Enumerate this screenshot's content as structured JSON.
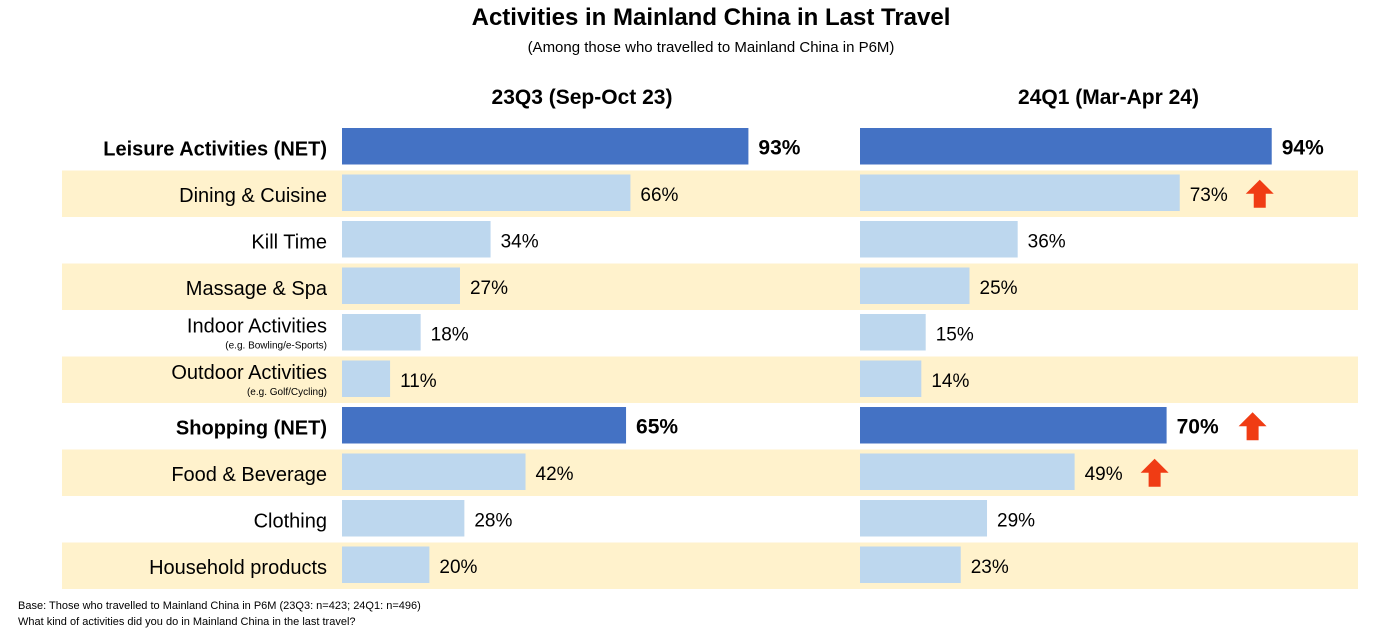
{
  "title": "Activities in Mainland China in Last Travel",
  "subtitle": "(Among those who travelled to Mainland China in P6M)",
  "colors": {
    "net_bar": "#4472C4",
    "sub_bar": "#BDD7EE",
    "band": "#FFF2CC",
    "arrow": "#F03C14"
  },
  "chart_data": {
    "type": "bar",
    "orientation": "horizontal",
    "xlim": [
      0,
      100
    ],
    "unit": "%",
    "categories": [
      {
        "label": "Leisure Activities (NET)",
        "note": "",
        "net": true
      },
      {
        "label": "Dining & Cuisine",
        "note": "",
        "net": false
      },
      {
        "label": "Kill Time",
        "note": "",
        "net": false
      },
      {
        "label": "Massage & Spa",
        "note": "",
        "net": false
      },
      {
        "label": "Indoor Activities",
        "note": "(e.g. Bowling/e-Sports)",
        "net": false
      },
      {
        "label": "Outdoor Activities",
        "note": "(e.g. Golf/Cycling)",
        "net": false
      },
      {
        "label": "Shopping (NET)",
        "note": "",
        "net": true
      },
      {
        "label": "Food & Beverage",
        "note": "",
        "net": false
      },
      {
        "label": "Clothing",
        "note": "",
        "net": false
      },
      {
        "label": "Household products",
        "note": "",
        "net": false
      }
    ],
    "series": [
      {
        "name": "23Q3 (Sep-Oct 23)",
        "values": [
          93,
          66,
          34,
          27,
          18,
          11,
          65,
          42,
          28,
          20
        ],
        "labels": [
          "93%",
          "66%",
          "34%",
          "27%",
          "18%",
          "11%",
          "65%",
          "42%",
          "28%",
          "20%"
        ],
        "up": [
          false,
          false,
          false,
          false,
          false,
          false,
          false,
          false,
          false,
          false
        ]
      },
      {
        "name": "24Q1 (Mar-Apr 24)",
        "values": [
          94,
          73,
          36,
          25,
          15,
          14,
          70,
          49,
          29,
          23
        ],
        "labels": [
          "94%",
          "73%",
          "36%",
          "25%",
          "15%",
          "14%",
          "70%",
          "49%",
          "29%",
          "23%"
        ],
        "up": [
          false,
          true,
          false,
          false,
          false,
          false,
          true,
          true,
          false,
          false
        ]
      }
    ]
  },
  "footnotes": {
    "base": "Base: Those who travelled to Mainland China in P6M (23Q3: n=423; 24Q1: n=496)",
    "question": "What kind of activities did you do in Mainland China in the last travel?"
  }
}
